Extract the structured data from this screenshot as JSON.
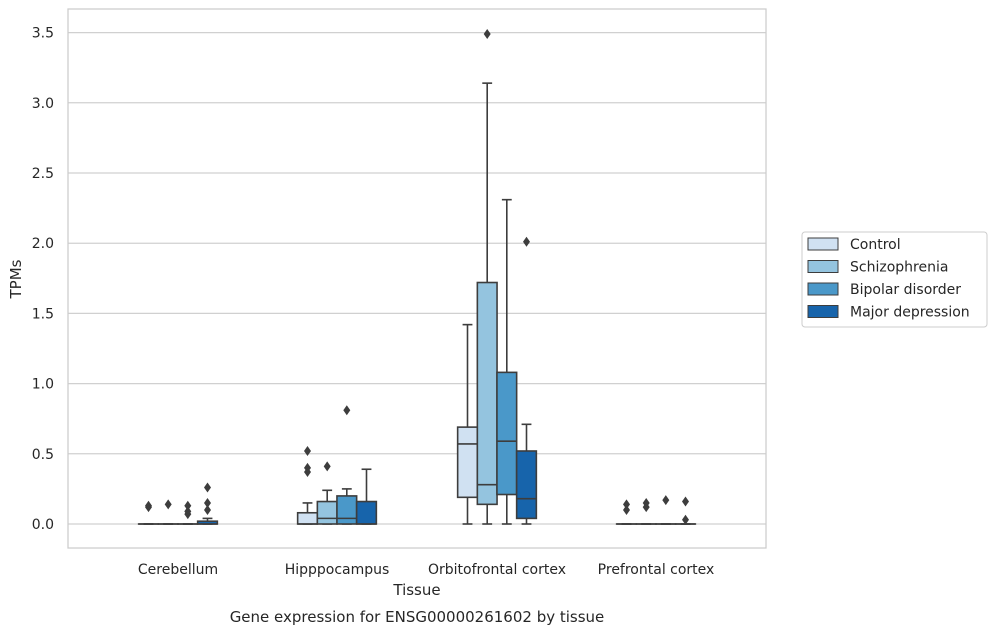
{
  "chart_data": {
    "type": "box",
    "title": "",
    "caption": "Gene expression for ENSG00000261602 by tissue",
    "xlabel": "Tissue",
    "ylabel": "TPMs",
    "ylim": [
      -0.17,
      3.66
    ],
    "yticks": [
      0.0,
      0.5,
      1.0,
      1.5,
      2.0,
      2.5,
      3.0,
      3.5
    ],
    "ytick_labels": [
      "0.0",
      "0.5",
      "1.0",
      "1.5",
      "2.0",
      "2.5",
      "3.0",
      "3.5"
    ],
    "categories": [
      "Cerebellum",
      "Hipppocampus",
      "Orbitofrontal cortex",
      "Prefrontal cortex"
    ],
    "grid": "horizontal",
    "legend_position": "right",
    "series": [
      {
        "name": "Control",
        "color": "#d0e1f2",
        "boxes": [
          {
            "min": 0.0,
            "q1": 0.0,
            "median": 0.0,
            "q3": 0.0,
            "max": 0.0,
            "outliers": [
              0.12,
              0.13
            ]
          },
          {
            "min": 0.0,
            "q1": 0.0,
            "median": 0.0,
            "q3": 0.08,
            "max": 0.15,
            "outliers": [
              0.37,
              0.4,
              0.52
            ]
          },
          {
            "min": 0.0,
            "q1": 0.19,
            "median": 0.57,
            "q3": 0.69,
            "max": 1.42,
            "outliers": []
          },
          {
            "min": 0.0,
            "q1": 0.0,
            "median": 0.0,
            "q3": 0.0,
            "max": 0.0,
            "outliers": [
              0.1,
              0.14
            ]
          }
        ]
      },
      {
        "name": "Schizophrenia",
        "color": "#94c4df",
        "boxes": [
          {
            "min": 0.0,
            "q1": 0.0,
            "median": 0.0,
            "q3": 0.0,
            "max": 0.0,
            "outliers": [
              0.14
            ]
          },
          {
            "min": 0.0,
            "q1": 0.0,
            "median": 0.04,
            "q3": 0.16,
            "max": 0.24,
            "outliers": [
              0.41
            ]
          },
          {
            "min": 0.0,
            "q1": 0.14,
            "median": 0.28,
            "q3": 1.72,
            "max": 3.14,
            "outliers": [
              3.49
            ]
          },
          {
            "min": 0.0,
            "q1": 0.0,
            "median": 0.0,
            "q3": 0.0,
            "max": 0.0,
            "outliers": [
              0.12,
              0.15
            ]
          }
        ]
      },
      {
        "name": "Bipolar disorder",
        "color": "#4a98c9",
        "boxes": [
          {
            "min": 0.0,
            "q1": 0.0,
            "median": 0.0,
            "q3": 0.0,
            "max": 0.0,
            "outliers": [
              0.07,
              0.09,
              0.13
            ]
          },
          {
            "min": 0.0,
            "q1": 0.0,
            "median": 0.04,
            "q3": 0.2,
            "max": 0.25,
            "outliers": [
              0.81
            ]
          },
          {
            "min": 0.0,
            "q1": 0.21,
            "median": 0.59,
            "q3": 1.08,
            "max": 2.31,
            "outliers": []
          },
          {
            "min": 0.0,
            "q1": 0.0,
            "median": 0.0,
            "q3": 0.0,
            "max": 0.0,
            "outliers": [
              0.17
            ]
          }
        ]
      },
      {
        "name": "Major depression",
        "color": "#1764ab",
        "boxes": [
          {
            "min": 0.0,
            "q1": 0.0,
            "median": 0.0,
            "q3": 0.02,
            "max": 0.04,
            "outliers": [
              0.1,
              0.15,
              0.26
            ]
          },
          {
            "min": 0.0,
            "q1": 0.0,
            "median": 0.0,
            "q3": 0.16,
            "max": 0.39,
            "outliers": []
          },
          {
            "min": 0.0,
            "q1": 0.04,
            "median": 0.18,
            "q3": 0.52,
            "max": 0.71,
            "outliers": [
              2.01
            ]
          },
          {
            "min": 0.0,
            "q1": 0.0,
            "median": 0.0,
            "q3": 0.0,
            "max": 0.0,
            "outliers": [
              0.03,
              0.16
            ]
          }
        ]
      }
    ]
  }
}
